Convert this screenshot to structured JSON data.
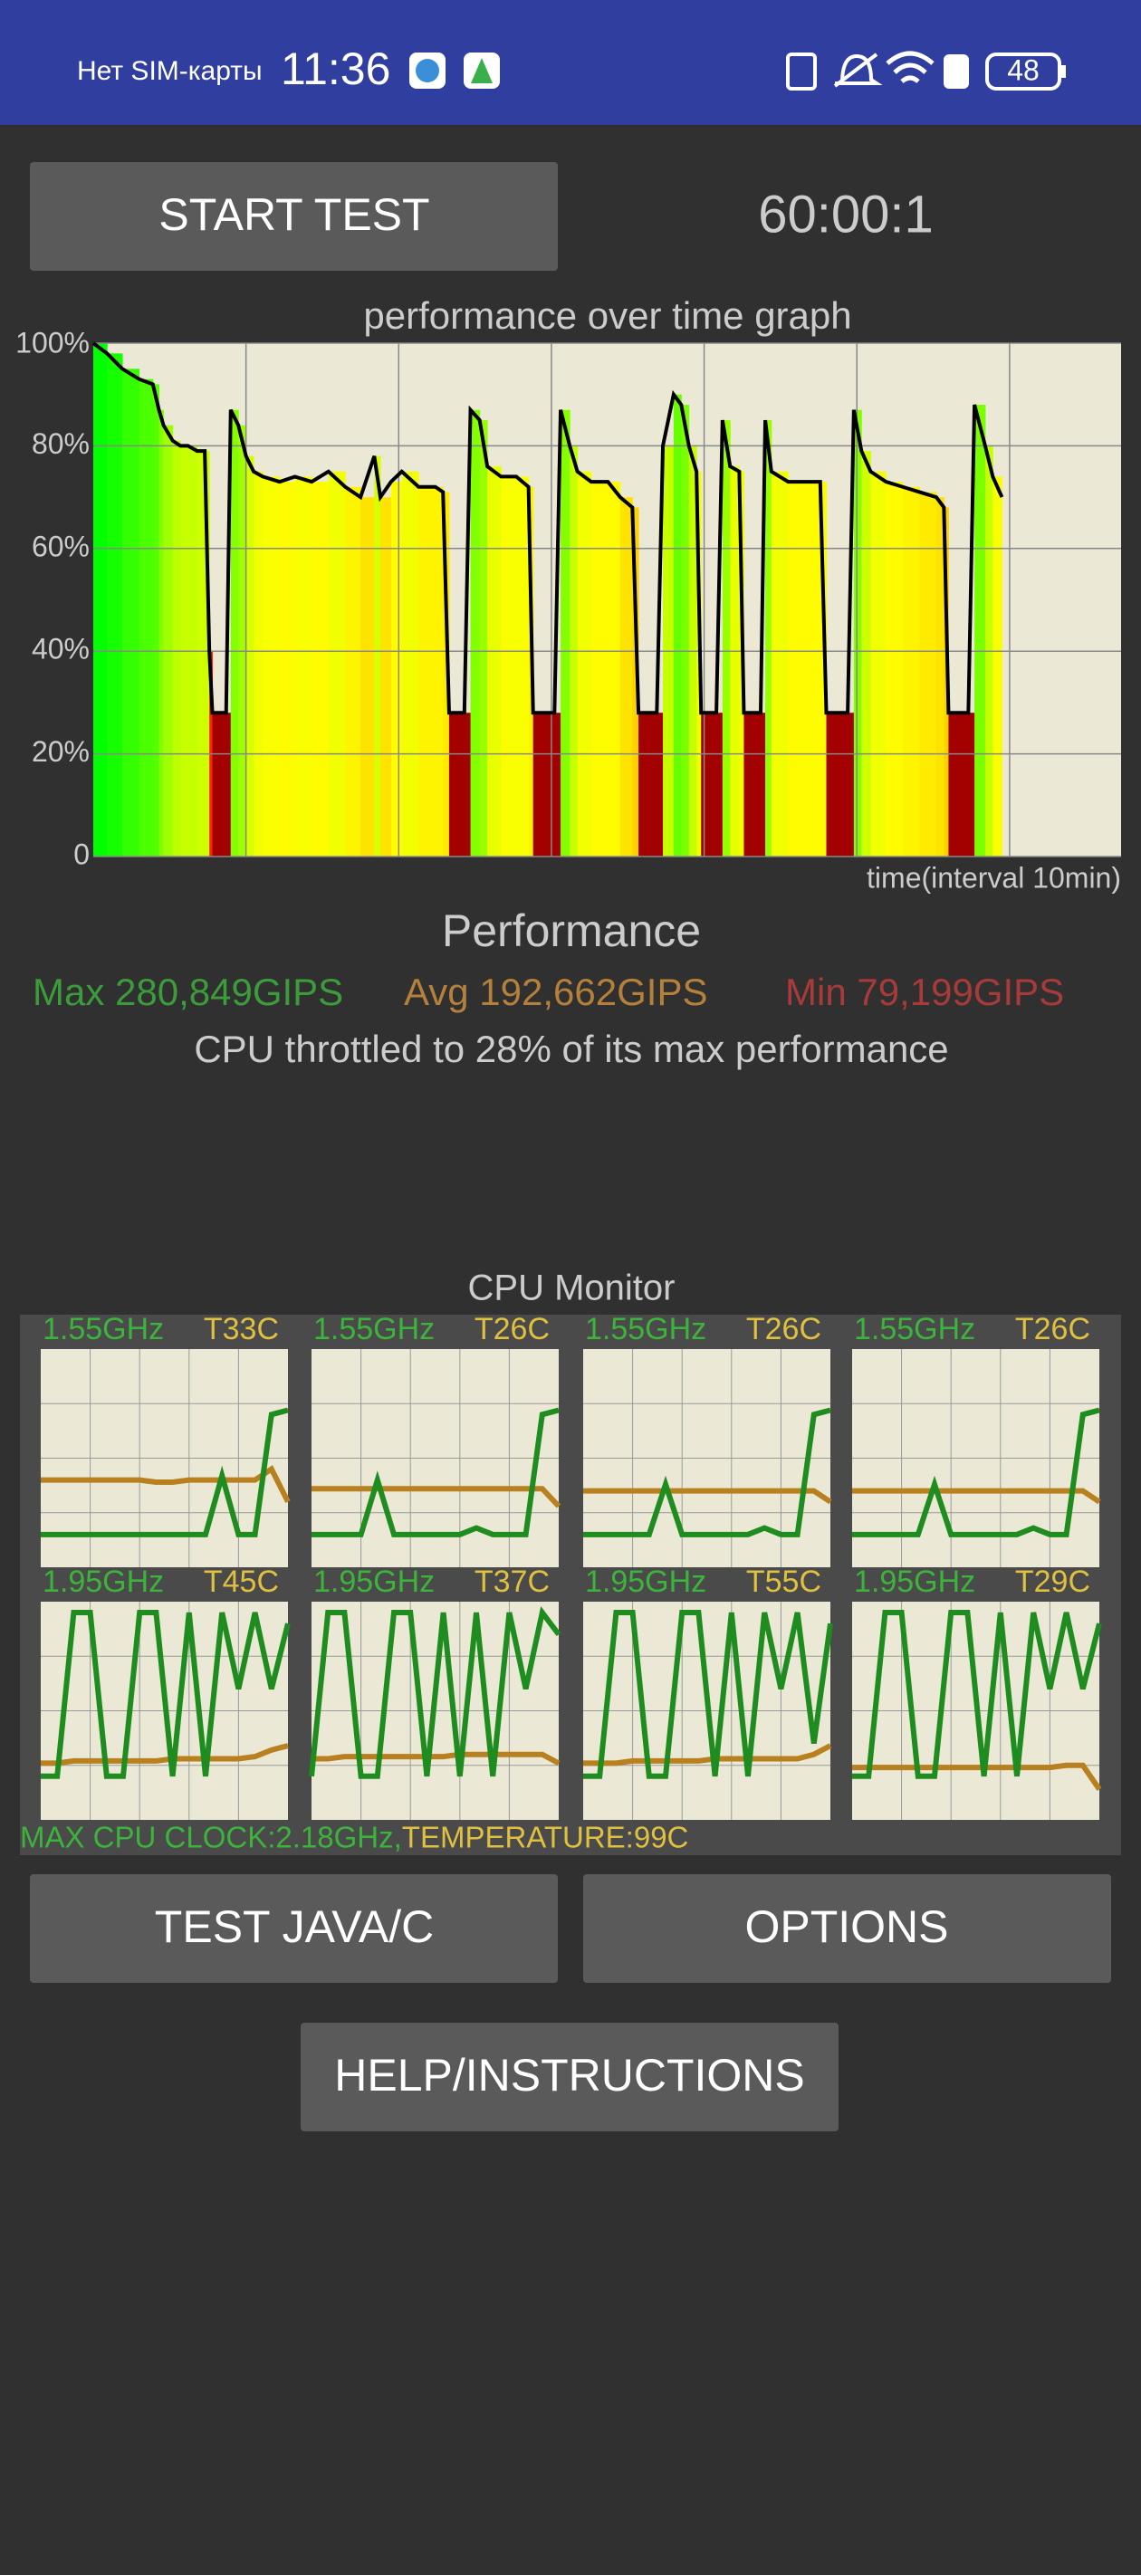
{
  "status_bar": {
    "carrier": "Нет SIM-карты",
    "time": "11:36",
    "battery": "48"
  },
  "buttons": {
    "start": "START TEST",
    "test": "TEST JAVA/C",
    "options": "OPTIONS",
    "help": "HELP/INSTRUCTIONS"
  },
  "timer": "60:00:1",
  "chart_data": {
    "type": "area",
    "title": "performance over time graph",
    "x_label": "time(interval 10min)",
    "x": [
      0,
      0.9,
      1.9,
      3.0,
      3.9,
      4.3,
      4.6,
      5.2,
      5.7,
      6.2,
      6.8,
      7.3,
      7.6,
      7.8,
      8.7,
      9.0,
      9.5,
      10.0,
      10.5,
      11.1,
      12.2,
      13.2,
      14.3,
      15.4,
      16.5,
      17.5,
      18.4,
      18.8,
      19.5,
      20.2,
      21.3,
      22.4,
      22.9,
      23.3,
      24.3,
      24.7,
      25.3,
      25.8,
      26.7,
      27.7,
      28.5,
      28.8,
      30.2,
      30.6,
      31.2,
      31.7,
      32.6,
      33.7,
      34.5,
      35.3,
      35.7,
      36.9,
      37.3,
      38.0,
      38.5,
      39.0,
      39.5,
      39.8,
      40.8,
      41.2,
      41.7,
      42.3,
      42.6,
      43.7,
      44.0,
      44.4,
      45.5,
      46.6,
      47.6,
      48.0,
      49.4,
      49.8,
      50.3,
      50.9,
      51.9,
      53.0,
      54.1,
      55.2,
      55.7,
      56.0,
      57.3,
      57.7,
      58.4,
      58.9,
      59.5
    ],
    "values": [
      100,
      98,
      95,
      93,
      92,
      87,
      84,
      81,
      80,
      80,
      79,
      79,
      40,
      28,
      28,
      87,
      84,
      78,
      75,
      74,
      73,
      74,
      73,
      75,
      72,
      70,
      78,
      70,
      73,
      75,
      72,
      72,
      71,
      28,
      28,
      87,
      85,
      76,
      74,
      74,
      72,
      28,
      28,
      87,
      80,
      75,
      73,
      73,
      70,
      68,
      28,
      28,
      80,
      90,
      88,
      80,
      75,
      28,
      28,
      85,
      76,
      75,
      28,
      28,
      85,
      75,
      73,
      73,
      73,
      28,
      28,
      87,
      79,
      75,
      73,
      72,
      71,
      70,
      68,
      28,
      28,
      88,
      80,
      74,
      70
    ],
    "xlim": [
      0,
      67.3
    ],
    "xticks": [
      10,
      20,
      30,
      40,
      50,
      60
    ],
    "ylim": [
      0,
      100
    ],
    "yticks": [
      0,
      {
        "value": 20,
        "label": "20%"
      },
      {
        "value": 40,
        "label": "40%"
      },
      {
        "value": 60,
        "label": "60%"
      },
      {
        "value": 80,
        "label": "80%"
      },
      {
        "value": 100,
        "label": "100%"
      }
    ],
    "grid": true,
    "line_color": "#000000"
  },
  "performance": {
    "title": "Performance",
    "max": "Max 280,849GIPS",
    "avg": "Avg 192,662GIPS",
    "min": "Min 79,199GIPS",
    "throttle": "CPU throttled to 28% of its max performance"
  },
  "cpu_monitor": {
    "title": "CPU Monitor",
    "ylim": [
      0,
      100
    ],
    "freq_color": "#1e8c1e",
    "temp_color": "#b8801e",
    "cores": [
      {
        "freq": "1.55GHz",
        "temp": "T33C",
        "freq_values": [
          15,
          15,
          15,
          15,
          15,
          15,
          15,
          15,
          15,
          15,
          15,
          42,
          15,
          15,
          70,
          72
        ],
        "temp_values": [
          40,
          40,
          40,
          40,
          40,
          40,
          40,
          39,
          39,
          40,
          40,
          40,
          40,
          40,
          45,
          30
        ]
      },
      {
        "freq": "1.55GHz",
        "temp": "T26C",
        "freq_values": [
          15,
          15,
          15,
          15,
          40,
          15,
          15,
          15,
          15,
          15,
          18,
          15,
          15,
          15,
          70,
          72
        ],
        "temp_values": [
          36,
          36,
          36,
          36,
          36,
          36,
          36,
          36,
          36,
          36,
          36,
          36,
          36,
          36,
          36,
          28
        ]
      },
      {
        "freq": "1.55GHz",
        "temp": "T26C",
        "freq_values": [
          15,
          15,
          15,
          15,
          15,
          38,
          15,
          15,
          15,
          15,
          15,
          18,
          15,
          15,
          70,
          72
        ],
        "temp_values": [
          35,
          35,
          35,
          35,
          35,
          35,
          35,
          35,
          35,
          35,
          35,
          35,
          35,
          35,
          35,
          30
        ]
      },
      {
        "freq": "1.55GHz",
        "temp": "T26C",
        "freq_values": [
          15,
          15,
          15,
          15,
          15,
          38,
          15,
          15,
          15,
          15,
          15,
          18,
          15,
          15,
          70,
          72
        ],
        "temp_values": [
          35,
          35,
          35,
          35,
          35,
          35,
          35,
          35,
          35,
          35,
          35,
          35,
          35,
          35,
          35,
          30
        ]
      },
      {
        "freq": "1.95GHz",
        "temp": "T45C",
        "freq_values": [
          20,
          20,
          95,
          95,
          20,
          20,
          95,
          95,
          20,
          95,
          20,
          95,
          60,
          95,
          60,
          90
        ],
        "temp_values": [
          26,
          26,
          27,
          27,
          27,
          27,
          27,
          27,
          28,
          28,
          28,
          28,
          28,
          29,
          32,
          34
        ]
      },
      {
        "freq": "1.95GHz",
        "temp": "T37C",
        "freq_values": [
          20,
          95,
          95,
          20,
          20,
          95,
          95,
          20,
          95,
          20,
          95,
          20,
          95,
          60,
          95,
          85
        ],
        "temp_values": [
          28,
          28,
          29,
          29,
          29,
          29,
          29,
          29,
          29,
          30,
          30,
          30,
          30,
          30,
          30,
          26
        ]
      },
      {
        "freq": "1.95GHz",
        "temp": "T55C",
        "freq_values": [
          20,
          20,
          95,
          95,
          20,
          20,
          95,
          95,
          20,
          95,
          20,
          95,
          60,
          95,
          35,
          90
        ],
        "temp_values": [
          26,
          26,
          26,
          27,
          27,
          27,
          27,
          27,
          28,
          28,
          28,
          28,
          28,
          28,
          30,
          34
        ]
      },
      {
        "freq": "1.95GHz",
        "temp": "T29C",
        "freq_values": [
          20,
          20,
          95,
          95,
          20,
          20,
          95,
          95,
          20,
          95,
          20,
          95,
          60,
          95,
          60,
          90
        ],
        "temp_values": [
          24,
          24,
          24,
          24,
          24,
          24,
          24,
          24,
          24,
          24,
          24,
          24,
          24,
          25,
          25,
          14
        ]
      }
    ],
    "footer_clock": "MAX CPU CLOCK:2.18GHz,",
    "footer_temp": "TEMPERATURE:99C"
  }
}
